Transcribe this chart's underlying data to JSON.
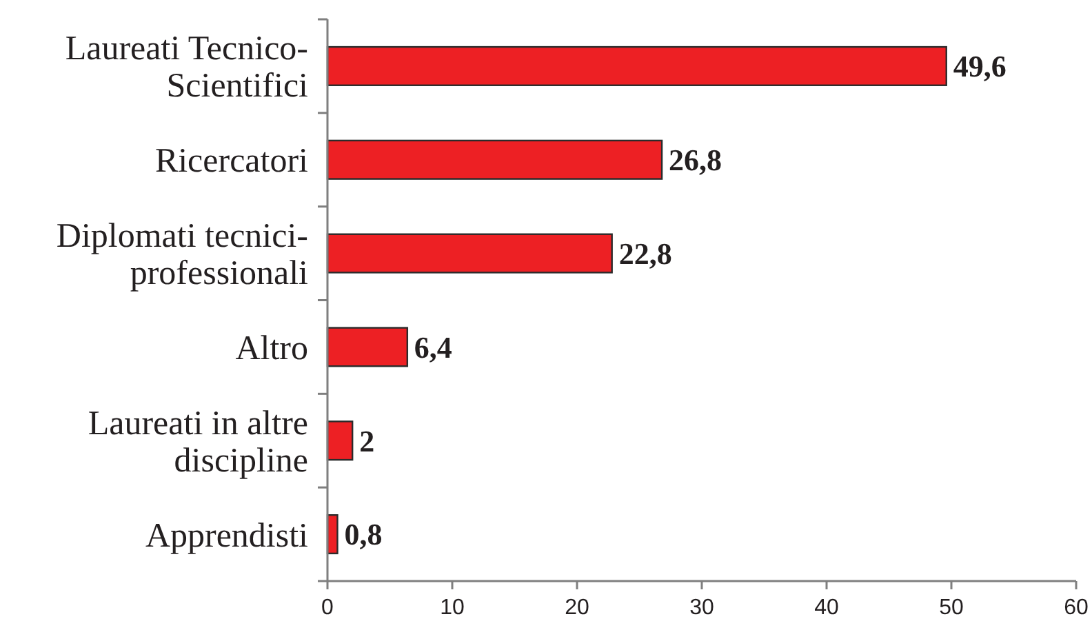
{
  "chart_data": {
    "type": "bar",
    "orientation": "horizontal",
    "categories": [
      "Laureati Tecnico-\nScientifici",
      "Ricercatori",
      "Diplomati tecnici-\nprofessionali",
      "Altro",
      "Laureati in altre\ndiscipline",
      "Apprendisti"
    ],
    "values": [
      49.6,
      26.8,
      22.8,
      6.4,
      2,
      0.8
    ],
    "value_labels": [
      "49,6",
      "26,8",
      "22,8",
      "6,4",
      "2",
      "0,8"
    ],
    "color": "#ed2024",
    "xlim": [
      0,
      60
    ],
    "xticks": [
      0,
      10,
      20,
      30,
      40,
      50,
      60
    ]
  }
}
